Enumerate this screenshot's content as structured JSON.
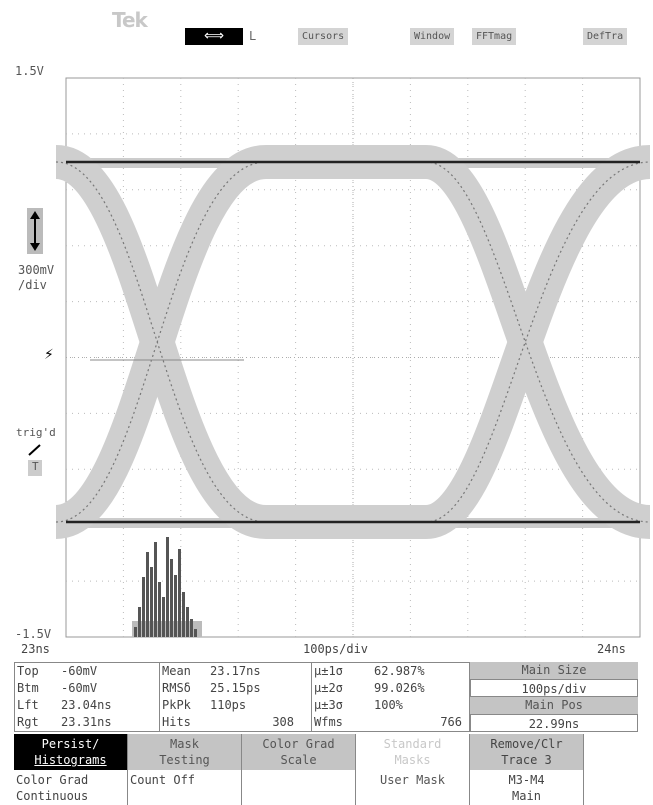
{
  "brand": "Tek",
  "topbar": {
    "arrow_symbol": "⟺",
    "l_label": "L",
    "cursors": "Cursors",
    "window": "Window",
    "fftmag": "FFTmag",
    "deftra": "DefTra"
  },
  "voltage": {
    "top": "1.5V",
    "bottom": "-1.5V",
    "scale_line1": "300mV",
    "scale_line2": "/div",
    "trig": "trig'd",
    "trig_mode": "T"
  },
  "timebase": {
    "left": "23ns",
    "center": "100ps/div",
    "right": "24ns"
  },
  "measurements": {
    "col1": [
      {
        "label": "Top",
        "value": "-60mV"
      },
      {
        "label": "Btm",
        "value": "-60mV"
      },
      {
        "label": "Lft",
        "value": "23.04ns"
      },
      {
        "label": "Rgt",
        "value": "23.31ns"
      }
    ],
    "col2": [
      {
        "label": "Mean",
        "value": "23.17ns"
      },
      {
        "label": "RMSδ",
        "value": "25.15ps"
      },
      {
        "label": "PkPk",
        "value": "110ps"
      },
      {
        "label": "Hits",
        "value": "308"
      }
    ],
    "col3": [
      {
        "label": "μ±1σ",
        "value": "62.987%"
      },
      {
        "label": "μ±2σ",
        "value": "99.026%"
      },
      {
        "label": "μ±3σ",
        "value": "100%"
      },
      {
        "label": "Wfms",
        "value": "766"
      }
    ]
  },
  "side": {
    "main_size_label": "Main Size",
    "main_size_value": "100ps/div",
    "main_pos_label": "Main Pos",
    "main_pos_value": "22.99ns"
  },
  "menu": {
    "persist_line1": "Persist/",
    "persist_line2": "Histograms",
    "persist_sub1": "Color Grad",
    "persist_sub2": "Continuous",
    "mask_line1": "Mask",
    "mask_line2": "Testing",
    "mask_sub": "Count Off",
    "color_line1": "Color Grad",
    "color_line2": "Scale",
    "std_line1": "Standard",
    "std_line2": "Masks",
    "std_sub": "User Mask",
    "remove_line1": "Remove/Clr",
    "remove_line2": "Trace 3",
    "remove_sub1": "M3-M4",
    "remove_sub2": "Main"
  }
}
